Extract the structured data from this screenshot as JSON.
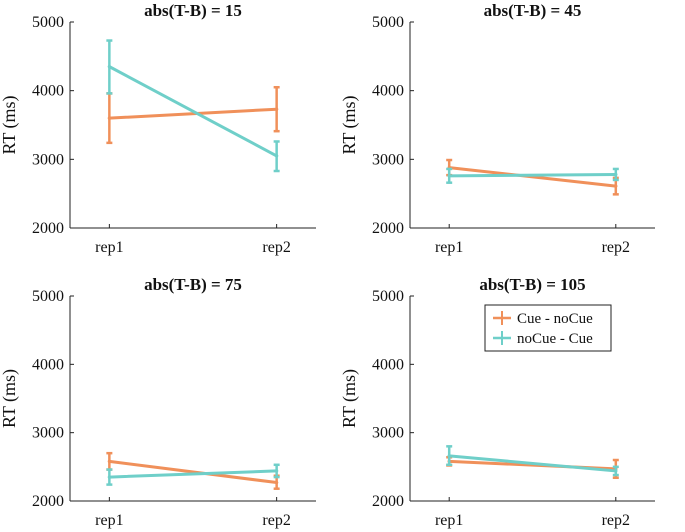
{
  "chart_data": {
    "type": "line",
    "layout": "2x2 grid of panels",
    "categories": [
      "rep1",
      "rep2"
    ],
    "ylabel": "RT (ms)",
    "ylim": [
      2000,
      5000
    ],
    "yticks": [
      "2000",
      "3000",
      "4000",
      "5000"
    ],
    "series_styles": [
      {
        "name": "Cue - noCue",
        "color": "#f0905a"
      },
      {
        "name": "noCue - Cue",
        "color": "#6fcfc9"
      }
    ],
    "legend": {
      "placement": "top-right of bottom-right panel",
      "entries": [
        "Cue - noCue",
        "noCue - Cue"
      ]
    },
    "panels": [
      {
        "title": "abs(T-B) = 15",
        "series": [
          {
            "name": "Cue - noCue",
            "values": [
              3600,
              3730
            ],
            "err_low": [
              3240,
              3410
            ],
            "err_high": [
              3960,
              4050
            ]
          },
          {
            "name": "noCue - Cue",
            "values": [
              4350,
              3050
            ],
            "err_low": [
              3960,
              2830
            ],
            "err_high": [
              4730,
              3260
            ]
          }
        ]
      },
      {
        "title": "abs(T-B) = 45",
        "series": [
          {
            "name": "Cue - noCue",
            "values": [
              2880,
              2610
            ],
            "err_low": [
              2770,
              2490
            ],
            "err_high": [
              2990,
              2730
            ]
          },
          {
            "name": "noCue - Cue",
            "values": [
              2760,
              2780
            ],
            "err_low": [
              2660,
              2700
            ],
            "err_high": [
              2860,
              2860
            ]
          }
        ]
      },
      {
        "title": "abs(T-B) = 75",
        "series": [
          {
            "name": "Cue - noCue",
            "values": [
              2580,
              2270
            ],
            "err_low": [
              2460,
              2180
            ],
            "err_high": [
              2700,
              2370
            ]
          },
          {
            "name": "noCue - Cue",
            "values": [
              2350,
              2440
            ],
            "err_low": [
              2240,
              2350
            ],
            "err_high": [
              2460,
              2530
            ]
          }
        ]
      },
      {
        "title": "abs(T-B) = 105",
        "series": [
          {
            "name": "Cue - noCue",
            "values": [
              2580,
              2470
            ],
            "err_low": [
              2520,
              2340
            ],
            "err_high": [
              2640,
              2600
            ]
          },
          {
            "name": "noCue - Cue",
            "values": [
              2660,
              2440
            ],
            "err_low": [
              2530,
              2380
            ],
            "err_high": [
              2800,
              2500
            ]
          }
        ]
      }
    ]
  }
}
